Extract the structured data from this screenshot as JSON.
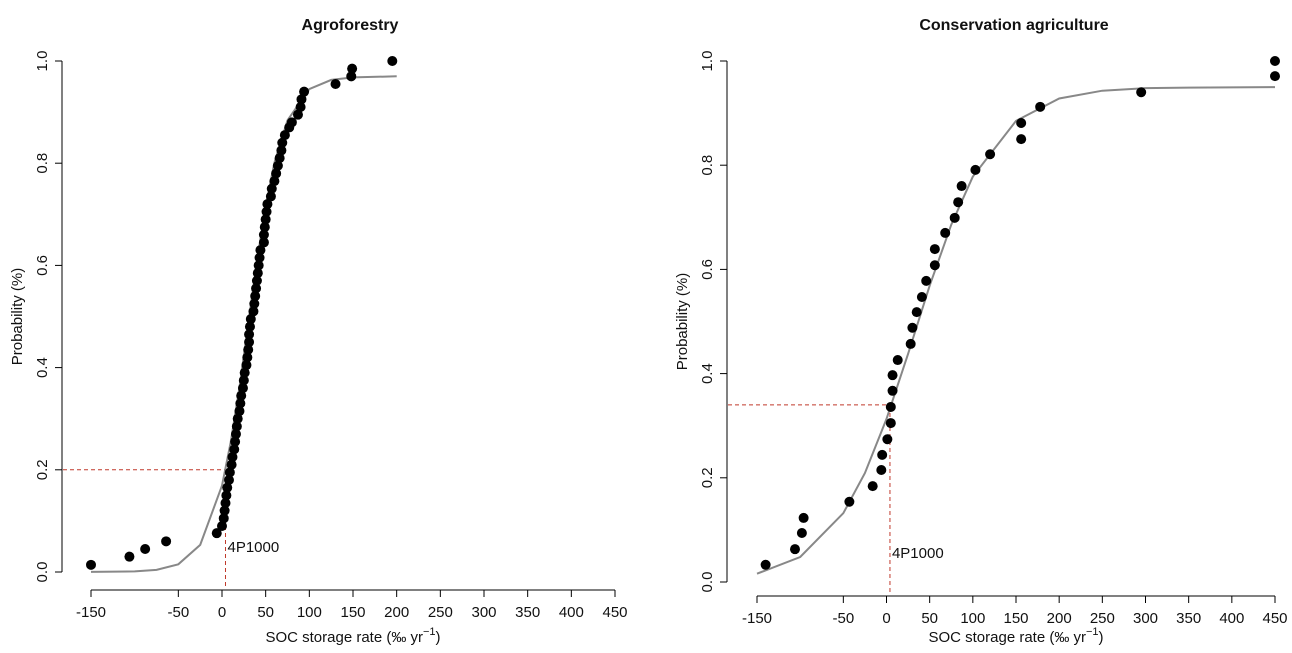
{
  "chart_data": [
    {
      "type": "scatter",
      "title": "Agroforestry",
      "x_label": [
        "SOC storage rate (‰ yr",
        "−1",
        ")"
      ],
      "y_label": "Probability (%)",
      "xlim": [
        -150,
        450
      ],
      "ylim": [
        0,
        1
      ],
      "xticks": [
        -150,
        -50,
        0,
        50,
        100,
        150,
        200,
        250,
        300,
        350,
        400,
        450
      ],
      "yticks": [
        {
          "value": 0,
          "label": "0.0"
        },
        0.2,
        0.4,
        0.6,
        0.8,
        {
          "value": 1,
          "label": "1.0"
        }
      ],
      "color": "#000000",
      "fit_color": "#888888",
      "threshold_color": "#c0392b",
      "threshold_x": 4,
      "threshold_y": 0.2,
      "annotation": "4P1000",
      "x": [
        -150,
        -106,
        -88,
        -64,
        -6,
        0,
        2,
        3,
        4,
        5,
        6,
        8,
        9,
        11,
        12,
        14,
        15,
        16,
        17,
        18,
        20,
        21,
        22,
        24,
        25,
        26,
        28,
        29,
        30,
        31,
        31,
        32,
        33,
        36,
        37,
        38,
        39,
        40,
        41,
        42,
        43,
        44,
        48,
        48,
        49,
        50,
        51,
        52,
        56,
        57,
        60,
        62,
        64,
        66,
        68,
        69,
        72,
        77,
        80,
        87,
        90,
        91,
        94,
        130,
        148,
        149,
        195
      ],
      "values": [
        0.014,
        0.03,
        0.045,
        0.06,
        0.076,
        0.09,
        0.105,
        0.12,
        0.135,
        0.15,
        0.165,
        0.18,
        0.195,
        0.21,
        0.225,
        0.24,
        0.255,
        0.27,
        0.285,
        0.3,
        0.315,
        0.33,
        0.345,
        0.36,
        0.375,
        0.39,
        0.405,
        0.42,
        0.435,
        0.45,
        0.465,
        0.48,
        0.495,
        0.51,
        0.525,
        0.54,
        0.555,
        0.57,
        0.585,
        0.6,
        0.615,
        0.63,
        0.645,
        0.66,
        0.675,
        0.69,
        0.705,
        0.72,
        0.735,
        0.75,
        0.765,
        0.78,
        0.795,
        0.81,
        0.825,
        0.84,
        0.855,
        0.87,
        0.88,
        0.895,
        0.91,
        0.925,
        0.94,
        0.955,
        0.97,
        0.985,
        1.0
      ],
      "fit_x": [
        -150,
        -100,
        -75,
        -50,
        -25,
        0,
        10,
        20,
        30,
        40,
        50,
        60,
        75,
        100,
        125,
        150,
        200
      ],
      "fit_values": [
        0.0001,
        0.0012,
        0.0042,
        0.015,
        0.053,
        0.169,
        0.254,
        0.362,
        0.485,
        0.608,
        0.716,
        0.801,
        0.884,
        0.945,
        0.963,
        0.968,
        0.97
      ]
    },
    {
      "type": "scatter",
      "title": "Conservation agriculture",
      "x_label": [
        "SOC storage rate (‰ yr",
        "−1",
        ")"
      ],
      "y_label": "Probability (%)",
      "xlim": [
        -150,
        450
      ],
      "ylim": [
        0,
        1
      ],
      "xticks": [
        -150,
        -50,
        0,
        50,
        100,
        150,
        200,
        250,
        300,
        350,
        400,
        450
      ],
      "yticks": [
        {
          "value": 0,
          "label": "0.0"
        },
        0.2,
        0.4,
        0.6,
        0.8,
        {
          "value": 1,
          "label": "1.0"
        }
      ],
      "color": "#000000",
      "fit_color": "#888888",
      "threshold_color": "#c0392b",
      "threshold_x": 4,
      "threshold_y": 0.34,
      "annotation": "4P1000",
      "x": [
        -140,
        -106,
        -98,
        -96,
        -43,
        -16,
        -6,
        -5,
        1,
        5,
        5,
        7,
        7,
        13,
        28,
        30,
        35,
        41,
        46,
        56,
        56,
        68,
        79,
        83,
        87,
        103,
        120,
        156,
        156,
        178,
        295,
        450,
        450
      ],
      "values": [
        0.033,
        0.063,
        0.094,
        0.123,
        0.154,
        0.184,
        0.215,
        0.244,
        0.274,
        0.305,
        0.336,
        0.367,
        0.397,
        0.426,
        0.457,
        0.488,
        0.518,
        0.547,
        0.578,
        0.608,
        0.639,
        0.67,
        0.699,
        0.729,
        0.76,
        0.791,
        0.821,
        0.85,
        0.881,
        0.912,
        0.94,
        0.971,
        1.0
      ],
      "fit_x": [
        -150,
        -100,
        -50,
        -25,
        0,
        25,
        50,
        75,
        100,
        150,
        200,
        250,
        300,
        350,
        450
      ],
      "fit_values": [
        0.016,
        0.048,
        0.132,
        0.209,
        0.313,
        0.438,
        0.569,
        0.686,
        0.778,
        0.885,
        0.928,
        0.943,
        0.948,
        0.949,
        0.95
      ]
    }
  ]
}
